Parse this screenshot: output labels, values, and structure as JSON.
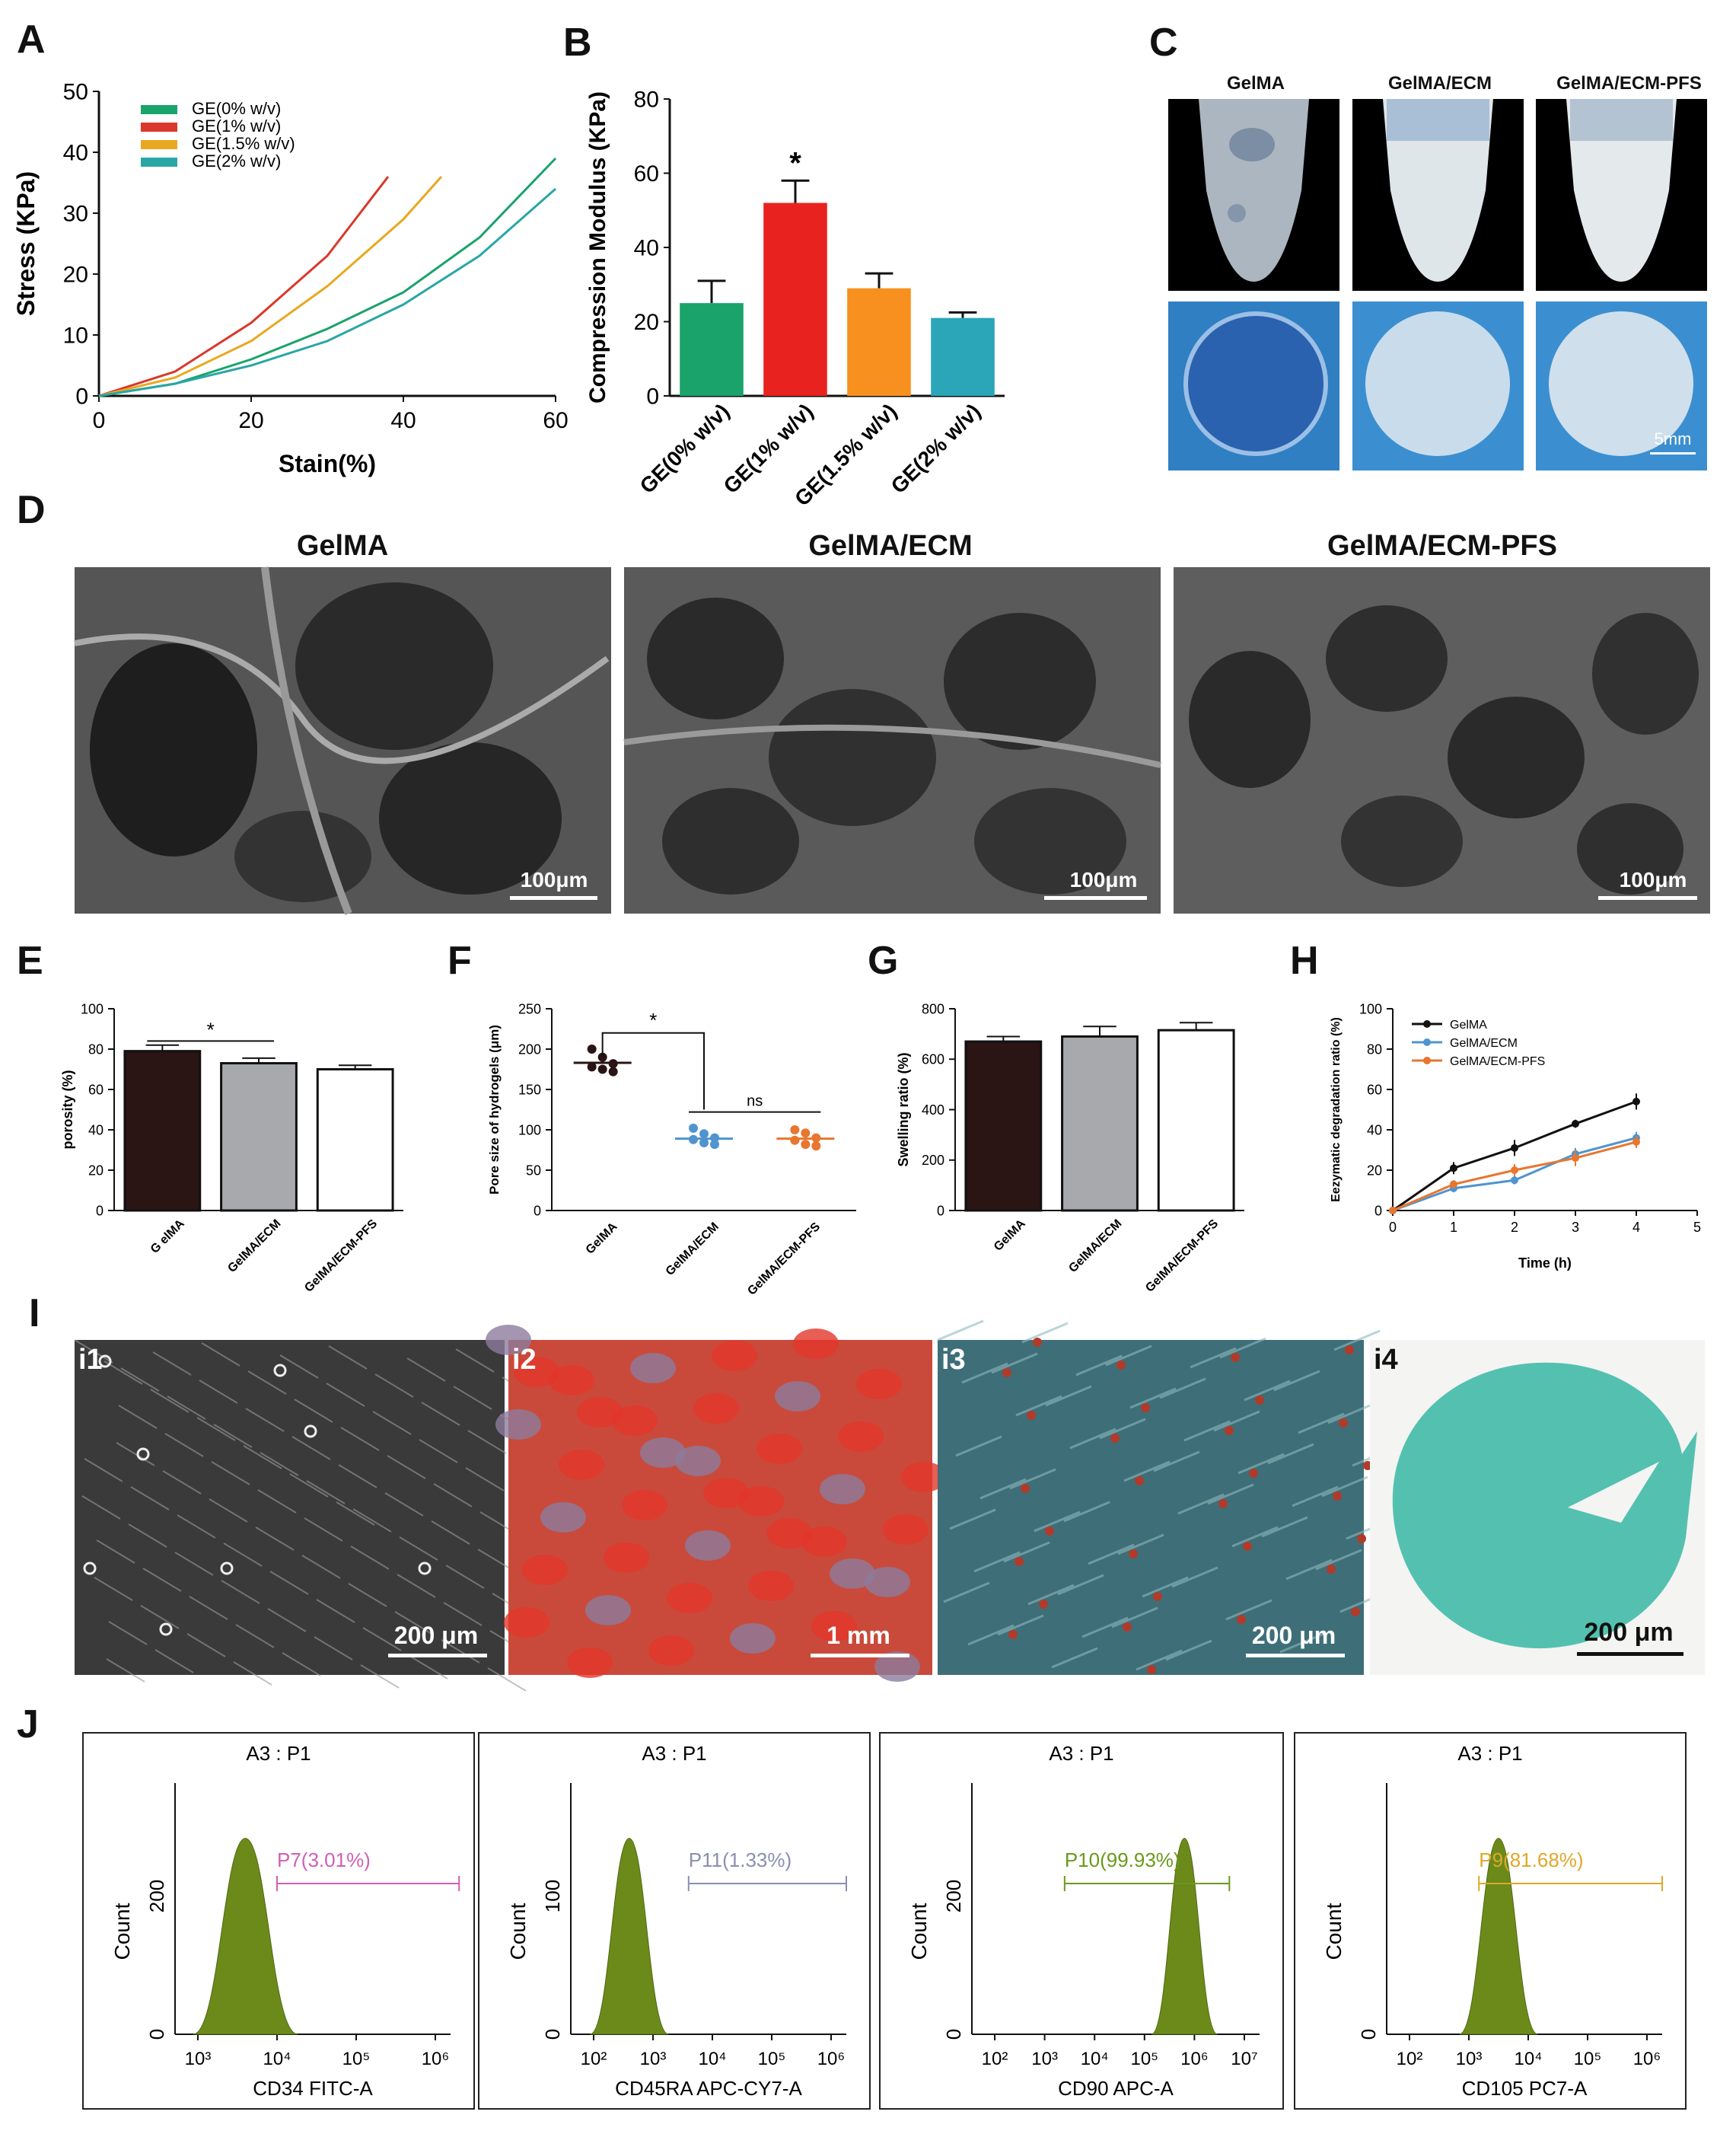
{
  "panels": {
    "A": "A",
    "B": "B",
    "C": "C",
    "D": "D",
    "E": "E",
    "F": "F",
    "G": "G",
    "H": "H",
    "I": "I",
    "J": "J"
  },
  "colors": {
    "green": "#1aa36b",
    "red": "#d9382b",
    "yellow": "#e8a820",
    "teal": "#2aa6a6",
    "bar_dark": "#2a1414",
    "bar_grey": "#a8a9ad",
    "line_blue": "#4f94cf",
    "line_orange": "#e8762f",
    "flow_fill": "#6b8a1a"
  },
  "chart_data": [
    {
      "id": "A",
      "type": "line",
      "xlabel": "Stain(%)",
      "ylabel": "Stress (KPa)",
      "xlim": [
        0,
        60
      ],
      "ylim": [
        0,
        50
      ],
      "xticks": [
        0,
        20,
        40,
        60
      ],
      "yticks": [
        0,
        10,
        20,
        30,
        40,
        50
      ],
      "legend_position": "top-left",
      "series": [
        {
          "name": "GE(0% w/v)",
          "color": "#1aa36b",
          "x": [
            0,
            10,
            20,
            30,
            40,
            50,
            60
          ],
          "y": [
            0,
            2,
            6,
            11,
            17,
            26,
            39
          ]
        },
        {
          "name": "GE(1% w/v)",
          "color": "#d9382b",
          "x": [
            0,
            10,
            20,
            30,
            38
          ],
          "y": [
            0,
            4,
            12,
            23,
            36
          ]
        },
        {
          "name": "GE(1.5% w/v)",
          "color": "#e8a820",
          "x": [
            0,
            10,
            20,
            30,
            40,
            45
          ],
          "y": [
            0,
            3,
            9,
            18,
            29,
            36
          ]
        },
        {
          "name": "GE(2% w/v)",
          "color": "#2aa6a6",
          "x": [
            0,
            10,
            20,
            30,
            40,
            50,
            60
          ],
          "y": [
            0,
            2,
            5,
            9,
            15,
            23,
            34
          ]
        }
      ]
    },
    {
      "id": "B",
      "type": "bar",
      "ylabel": "Compression Modulus (KPa)",
      "ylim": [
        0,
        80
      ],
      "yticks": [
        0,
        20,
        40,
        60,
        80
      ],
      "categories": [
        "GE(0% w/v)",
        "GE(1% w/v)",
        "GE(1.5% w/v)",
        "GE(2% w/v)"
      ],
      "values": [
        25,
        52,
        29,
        21
      ],
      "errors": [
        6,
        6,
        4,
        1.5
      ],
      "colors": [
        "#1aa36b",
        "#e8231f",
        "#f7901e",
        "#2aa6b8"
      ],
      "annotations": [
        {
          "category": "GE(1% w/v)",
          "text": "*"
        }
      ]
    },
    {
      "id": "E",
      "type": "bar",
      "ylabel": "porosity (%)",
      "ylim": [
        0,
        100
      ],
      "yticks": [
        0,
        20,
        40,
        60,
        80,
        100
      ],
      "categories": [
        "G elMA",
        "GelMA/ECM",
        "GelMA/ECM-PFS"
      ],
      "values": [
        79,
        73,
        70
      ],
      "errors": [
        3,
        2.5,
        2
      ],
      "colors": [
        "#2a1414",
        "#a8a9ad",
        "#ffffff"
      ],
      "annotations": [
        {
          "between": [
            "G elMA",
            "GelMA/ECM"
          ],
          "text": "*"
        }
      ]
    },
    {
      "id": "F",
      "type": "scatter",
      "ylabel": "Pore size of hydrogels (μm)",
      "ylim": [
        0,
        250
      ],
      "yticks": [
        0,
        50,
        100,
        150,
        200,
        250
      ],
      "categories": [
        "GelMA",
        "GelMA/ECM",
        "GelMA/ECM-PFS"
      ],
      "series": [
        {
          "name": "GelMA",
          "color": "#2a1414",
          "values": [
            200,
            190,
            182,
            178,
            175,
            172
          ],
          "mean": 183
        },
        {
          "name": "GelMA/ECM",
          "color": "#4f94cf",
          "values": [
            102,
            95,
            90,
            88,
            84,
            82
          ],
          "mean": 89
        },
        {
          "name": "GelMA/ECM-PFS",
          "color": "#e8762f",
          "values": [
            100,
            96,
            90,
            87,
            82,
            80
          ],
          "mean": 89
        }
      ],
      "annotations": [
        {
          "between": [
            "GelMA",
            "GelMA/ECM"
          ],
          "text": "*"
        },
        {
          "between": [
            "GelMA/ECM",
            "GelMA/ECM-PFS"
          ],
          "text": "ns"
        }
      ]
    },
    {
      "id": "G",
      "type": "bar",
      "ylabel": "Swelling ratio (%)",
      "ylim": [
        0,
        800
      ],
      "yticks": [
        0,
        200,
        400,
        600,
        800
      ],
      "categories": [
        "GelMA",
        "GelMA/ECM",
        "GelMA/ECM-PFS"
      ],
      "values": [
        670,
        690,
        715
      ],
      "errors": [
        20,
        40,
        30
      ],
      "colors": [
        "#2a1414",
        "#a8a9ad",
        "#ffffff"
      ]
    },
    {
      "id": "H",
      "type": "line",
      "xlabel": "Time (h)",
      "ylabel": "Eezymatic degradation ratio (%)",
      "xlim": [
        0,
        5
      ],
      "ylim": [
        0,
        100
      ],
      "xticks": [
        0,
        1,
        2,
        3,
        4,
        5
      ],
      "yticks": [
        0,
        20,
        40,
        60,
        80,
        100
      ],
      "legend_position": "top-left",
      "series": [
        {
          "name": "GelMA",
          "color": "#111111",
          "x": [
            0,
            1,
            2,
            3,
            4
          ],
          "y": [
            0,
            21,
            31,
            43,
            54
          ],
          "err": [
            0,
            3,
            4,
            2,
            4
          ]
        },
        {
          "name": "GelMA/ECM",
          "color": "#4f94cf",
          "x": [
            0,
            1,
            2,
            3,
            4
          ],
          "y": [
            0,
            11,
            15,
            28,
            36
          ],
          "err": [
            0,
            2,
            2,
            3,
            3
          ]
        },
        {
          "name": "GelMA/ECM-PFS",
          "color": "#e8762f",
          "x": [
            0,
            1,
            2,
            3,
            4
          ],
          "y": [
            0,
            13,
            20,
            26,
            34
          ],
          "err": [
            0,
            2,
            3,
            4,
            3
          ]
        }
      ]
    },
    {
      "id": "J",
      "type": "area",
      "plots": [
        {
          "title": "A3 : P1",
          "xlabel": "CD34 FITC-A",
          "ylabel": "Count",
          "gate": "P7(3.01%)",
          "gate_color": "#d15fb5",
          "xticks": [
            "10³",
            "10⁴",
            "10⁵",
            "10⁶"
          ],
          "yticks": [
            "0",
            "200"
          ],
          "peak_log": 3.6
        },
        {
          "title": "A3 : P1",
          "xlabel": "CD45RA APC-CY7-A",
          "ylabel": "Count",
          "gate": "P11(1.33%)",
          "gate_color": "#8a8fb0",
          "xticks": [
            "10²",
            "10³",
            "10⁴",
            "10⁵",
            "10⁶"
          ],
          "yticks": [
            "0",
            "100"
          ],
          "peak_log": 2.6
        },
        {
          "title": "A3 : P1",
          "xlabel": "CD90 APC-A",
          "ylabel": "Count",
          "gate": "P10(99.93%)",
          "gate_color": "#6a9a1a",
          "xticks": [
            "10²",
            "10³",
            "10⁴",
            "10⁵",
            "10⁶",
            "10⁷"
          ],
          "yticks": [
            "0",
            "200"
          ],
          "peak_log": 5.8
        },
        {
          "title": "A3 : P1",
          "xlabel": "CD105 PC7-A",
          "ylabel": "Count",
          "gate": "P9(81.68%)",
          "gate_color": "#e0a82a",
          "xticks": [
            "10²",
            "10³",
            "10⁴",
            "10⁵",
            "10⁶"
          ],
          "yticks": [
            "0"
          ],
          "peak_log": 3.5
        }
      ]
    }
  ],
  "C": {
    "titles": [
      "GelMA",
      "GelMA/ECM",
      "GelMA/ECM-PFS"
    ],
    "scalebar": "5mm"
  },
  "D": {
    "titles": [
      "GelMA",
      "GelMA/ECM",
      "GelMA/ECM-PFS"
    ],
    "scalebar": "100μm"
  },
  "I": {
    "labels": [
      "i1",
      "i2",
      "i3",
      "i4"
    ],
    "scalebars": [
      "200 μm",
      "1 mm",
      "200 μm",
      "200 μm"
    ]
  }
}
